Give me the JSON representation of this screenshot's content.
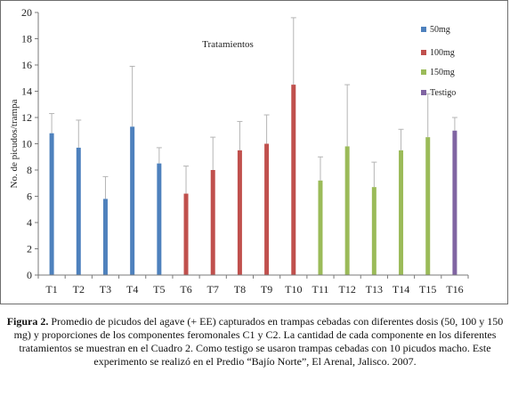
{
  "chart_data": {
    "type": "bar",
    "xlabel": "Tratamientos",
    "ylabel": "No. de picudos/trampa",
    "ylim": [
      0,
      20
    ],
    "yticks": [
      0,
      2,
      4,
      6,
      8,
      10,
      12,
      14,
      16,
      18,
      20
    ],
    "grid": false,
    "legend_position": "right",
    "categories": [
      "T1",
      "T2",
      "T3",
      "T4",
      "T5",
      "T6",
      "T7",
      "T8",
      "T9",
      "T10",
      "T11",
      "T12",
      "T13",
      "T14",
      "T15",
      "T16"
    ],
    "values": [
      10.8,
      9.7,
      5.8,
      11.3,
      8.5,
      6.2,
      8.0,
      9.5,
      10.0,
      14.5,
      7.2,
      9.8,
      6.7,
      9.5,
      10.5,
      11.0
    ],
    "errors": [
      1.5,
      2.1,
      1.7,
      4.6,
      1.2,
      2.1,
      2.5,
      2.2,
      2.2,
      5.1,
      1.8,
      4.7,
      1.9,
      1.6,
      3.3,
      1.0
    ],
    "series": [
      {
        "name": "50mg",
        "color": "#4e81bd",
        "categories": [
          "T1",
          "T2",
          "T3",
          "T4",
          "T5"
        ]
      },
      {
        "name": "100mg",
        "color": "#c0504d",
        "categories": [
          "T6",
          "T7",
          "T8",
          "T9",
          "T10"
        ]
      },
      {
        "name": "150mg",
        "color": "#9bbb59",
        "categories": [
          "T11",
          "T12",
          "T13",
          "T14",
          "T15"
        ]
      },
      {
        "name": "Testigo",
        "color": "#8064a2",
        "categories": [
          "T16"
        ]
      }
    ]
  },
  "caption": {
    "label": "Figura 2.",
    "text": " Promedio de picudos del agave (+ EE) capturados en trampas cebadas con diferentes dosis (50, 100 y 150 mg) y proporciones de los componentes feromonales C1 y C2. La cantidad de cada componente en los diferentes tratamientos se muestran en el Cuadro 2. Como testigo se usaron trampas cebadas con 10 picudos macho. Este experimento se realizó en el Predio “Bajío Norte”, El Arenal, Jalisco. 2007."
  }
}
